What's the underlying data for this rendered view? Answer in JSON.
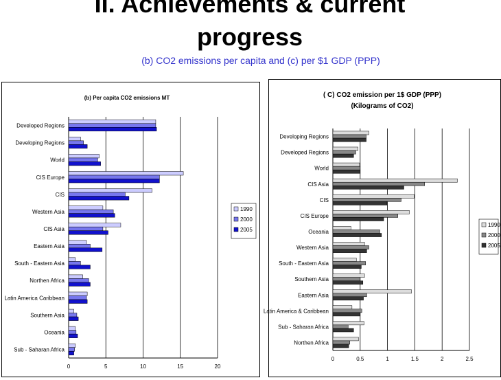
{
  "header": {
    "title_line1": "II. Achievements & current",
    "title_line2": "progress",
    "subtitle": "(b) CO2 emissions per capita and (c) per $1 GDP (PPP)"
  },
  "colors": {
    "title": "#000000",
    "subtitle": "#3333cc",
    "b_1990": "#ccccff",
    "b_2000": "#7777ee",
    "b_2005": "#1111cc",
    "c_1990": "#dddddd",
    "c_2000": "#888888",
    "c_2005": "#333333"
  },
  "chart_data": [
    {
      "type": "bar",
      "orientation": "horizontal",
      "title": "(b) Per capita CO2 emissions MT",
      "categories": [
        "Developed Regions",
        "Developing Regions",
        "World",
        "CIS Europe",
        "CIS",
        "Western Asia",
        "CIS Asia",
        "Eastern Asia",
        "South - Eastern Asia",
        "Northen Africa",
        "Latin America Caribbean",
        "Southern Asia",
        "Oceania",
        "Sub - Saharan Africa"
      ],
      "series": [
        {
          "name": "1990",
          "values": [
            11.7,
            1.6,
            4.1,
            15.4,
            11.2,
            4.6,
            7.0,
            2.4,
            0.9,
            1.9,
            2.5,
            0.7,
            0.9,
            0.9
          ]
        },
        {
          "name": "2000",
          "values": [
            11.7,
            2.0,
            3.9,
            12.2,
            7.6,
            6.0,
            4.6,
            2.9,
            1.6,
            2.7,
            2.4,
            1.1,
            1.0,
            0.8
          ]
        },
        {
          "name": "2005",
          "values": [
            11.8,
            2.5,
            4.3,
            12.2,
            8.1,
            6.2,
            5.3,
            4.5,
            2.9,
            2.9,
            2.5,
            1.3,
            1.2,
            0.7
          ]
        }
      ],
      "xticks": [
        "0",
        "5",
        "10",
        "15",
        "20"
      ],
      "xlim": [
        0,
        20
      ],
      "grid": "vertical",
      "legend": "right"
    },
    {
      "type": "bar",
      "orientation": "horizontal",
      "title": "( C) CO2 emission per 1$ GDP (PPP)",
      "subtitle": "(Kilograms of CO2)",
      "categories": [
        "Developing Regions",
        "Developed Regions",
        "World",
        "CIS Asia",
        "CIS",
        "CIS Europe",
        "Oceania",
        "Western Asia",
        "South - Eastern Asia",
        "Southern Asia",
        "Eastern Asia",
        "Latin America & Caribbean",
        "Sub - Saharan Africa",
        "Northen Africa"
      ],
      "series": [
        {
          "name": "1990",
          "values": [
            0.66,
            0.46,
            0.49,
            2.28,
            1.49,
            1.4,
            0.33,
            0.58,
            0.43,
            0.58,
            1.44,
            0.35,
            0.57,
            0.47
          ]
        },
        {
          "name": "2000",
          "values": [
            0.61,
            0.42,
            0.5,
            1.68,
            1.25,
            1.19,
            0.86,
            0.66,
            0.6,
            0.5,
            0.62,
            0.53,
            0.28,
            0.31
          ]
        },
        {
          "name": "2005",
          "values": [
            0.61,
            0.38,
            0.5,
            1.3,
            0.99,
            0.93,
            0.89,
            0.62,
            0.52,
            0.55,
            0.56,
            0.5,
            0.38,
            0.29
          ]
        }
      ],
      "xticks": [
        "0",
        "0.5",
        "1",
        "1.5",
        "2",
        "2.5"
      ],
      "xlim": [
        0,
        2.5
      ],
      "grid": "vertical",
      "legend": "right"
    }
  ]
}
